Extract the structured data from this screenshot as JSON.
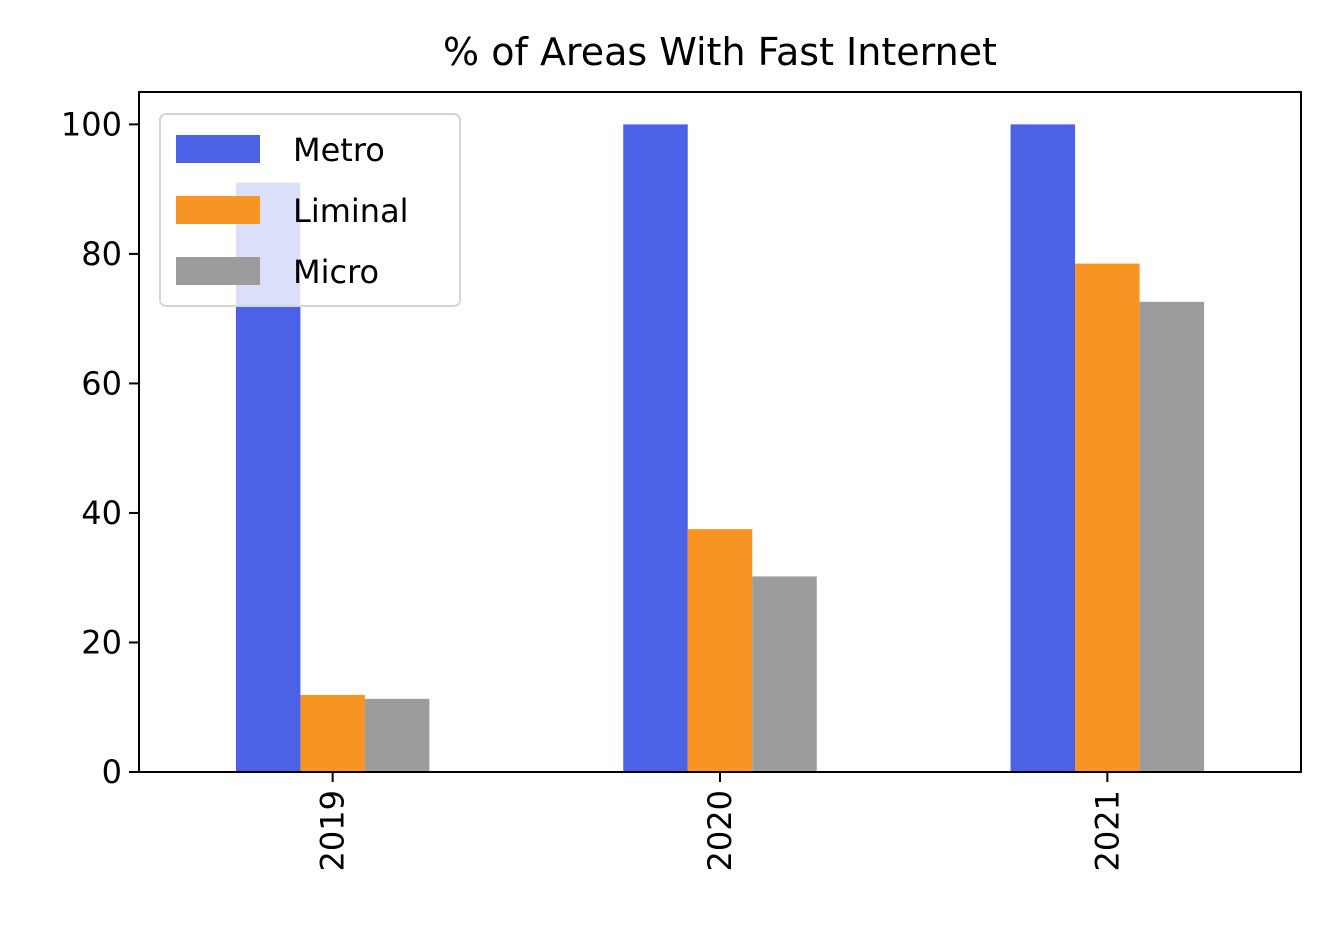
{
  "chart_data": {
    "type": "bar",
    "title": "% of Areas With Fast Internet",
    "xlabel": "",
    "ylabel": "",
    "categories": [
      "2019",
      "2020",
      "2021"
    ],
    "series": [
      {
        "name": "Metro",
        "color": "#4b61e6",
        "values": [
          91.0,
          100.0,
          100.0
        ]
      },
      {
        "name": "Liminal",
        "color": "#f79423",
        "values": [
          11.9,
          37.5,
          78.5
        ]
      },
      {
        "name": "Micro",
        "color": "#9c9c9c",
        "values": [
          11.3,
          30.2,
          72.6
        ]
      }
    ],
    "ylim": [
      0,
      105
    ],
    "yticks": [
      "0",
      "20",
      "40",
      "60",
      "80",
      "100"
    ],
    "grid": false,
    "legend_position": "top-left",
    "xtick_rotation": "vertical"
  }
}
